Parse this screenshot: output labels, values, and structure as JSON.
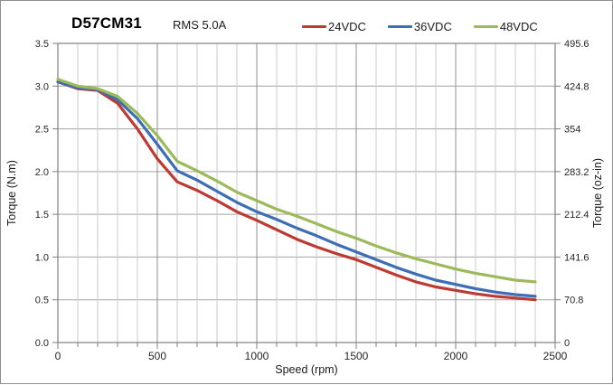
{
  "header": {
    "title": "D57CM31",
    "subtitle": "RMS 5.0A"
  },
  "legend": {
    "position": "top",
    "items": [
      {
        "label": "24VDC",
        "color": "#bd3a32"
      },
      {
        "label": "36VDC",
        "color": "#3d6eb5"
      },
      {
        "label": "48VDC",
        "color": "#9cba5a"
      }
    ]
  },
  "chart_data": {
    "type": "line",
    "title": "D57CM31 RMS 5.0A torque-speed curves",
    "xlabel": "Speed (rpm)",
    "ylabel_left": "Torque (N.m)",
    "ylabel_right": "Torque (oz-in)",
    "xlim": [
      0,
      2500
    ],
    "ylim_left": [
      0,
      3.5
    ],
    "ylim_right": [
      0,
      495.6
    ],
    "grid": true,
    "legend_position": "top",
    "x": [
      0,
      100,
      200,
      300,
      400,
      500,
      600,
      700,
      800,
      900,
      1000,
      1100,
      1200,
      1300,
      1400,
      1500,
      1600,
      1700,
      1800,
      1900,
      2000,
      2100,
      2200,
      2300,
      2400
    ],
    "series": [
      {
        "name": "24VDC",
        "color": "#bd3a32",
        "values": [
          3.05,
          2.97,
          2.95,
          2.8,
          2.5,
          2.15,
          1.88,
          1.78,
          1.66,
          1.53,
          1.43,
          1.32,
          1.21,
          1.12,
          1.04,
          0.97,
          0.88,
          0.79,
          0.71,
          0.65,
          0.61,
          0.57,
          0.54,
          0.52,
          0.5
        ]
      },
      {
        "name": "36VDC",
        "color": "#3d6eb5",
        "values": [
          3.05,
          2.98,
          2.96,
          2.84,
          2.62,
          2.32,
          2.01,
          1.9,
          1.77,
          1.64,
          1.53,
          1.44,
          1.34,
          1.25,
          1.15,
          1.06,
          0.97,
          0.88,
          0.8,
          0.73,
          0.68,
          0.63,
          0.59,
          0.56,
          0.54
        ]
      },
      {
        "name": "48VDC",
        "color": "#9cba5a",
        "values": [
          3.08,
          3.0,
          2.97,
          2.88,
          2.68,
          2.42,
          2.12,
          2.01,
          1.89,
          1.76,
          1.66,
          1.56,
          1.48,
          1.39,
          1.3,
          1.22,
          1.13,
          1.05,
          0.98,
          0.92,
          0.86,
          0.81,
          0.77,
          0.73,
          0.71
        ]
      }
    ],
    "x_major_ticks": [
      {
        "v": 0,
        "label": "0"
      },
      {
        "v": 500,
        "label": "500"
      },
      {
        "v": 1000,
        "label": "1000"
      },
      {
        "v": 1500,
        "label": "1500"
      },
      {
        "v": 2000,
        "label": "2000"
      },
      {
        "v": 2500,
        "label": "2500"
      }
    ],
    "x_minor_step": 100,
    "y_left_ticks": [
      {
        "v": 0.0,
        "label": "0.0"
      },
      {
        "v": 0.5,
        "label": "0.5"
      },
      {
        "v": 1.0,
        "label": "1.0"
      },
      {
        "v": 1.5,
        "label": "1.5"
      },
      {
        "v": 2.0,
        "label": "2.0"
      },
      {
        "v": 2.5,
        "label": "2.5"
      },
      {
        "v": 3.0,
        "label": "3.0"
      },
      {
        "v": 3.5,
        "label": "3.5"
      }
    ],
    "y_right_ticks": [
      {
        "v": 0,
        "label": "0"
      },
      {
        "v": 70.8,
        "label": "70.8"
      },
      {
        "v": 141.6,
        "label": "141.6"
      },
      {
        "v": 212.4,
        "label": "212.4"
      },
      {
        "v": 283.2,
        "label": "283.2"
      },
      {
        "v": 354,
        "label": "354"
      },
      {
        "v": 424.8,
        "label": "424.8"
      },
      {
        "v": 495.6,
        "label": "495.6"
      }
    ],
    "colors": {
      "grid_minor": "#cbcbcb",
      "grid_major": "#8f8f8f",
      "grid_horizontal": "#a3a3a3",
      "plot_border": "#7f7f7f",
      "tick_label": "#262626",
      "axis_title": "#1a1a1a"
    }
  }
}
